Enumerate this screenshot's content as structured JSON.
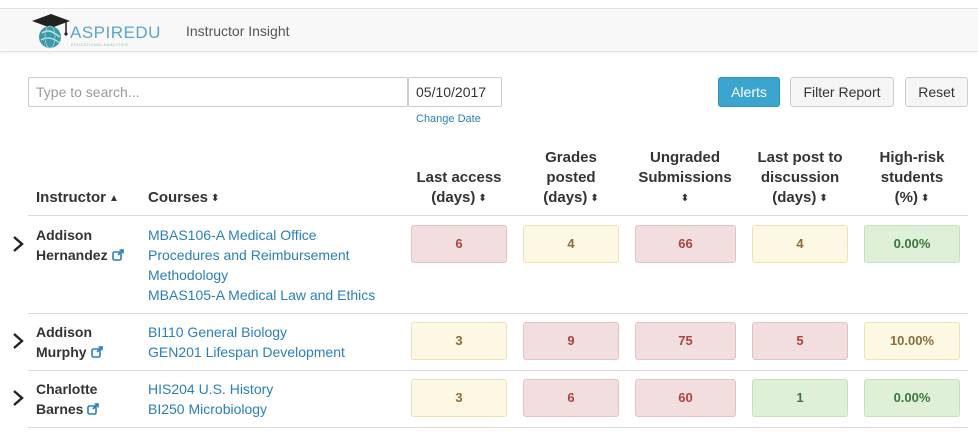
{
  "app": {
    "logo_text": "ASPIREDU",
    "logo_tagline": "EDUCATIONAL ANALYTICS",
    "title": "Instructor Insight"
  },
  "search": {
    "placeholder": "Type to search...",
    "value": ""
  },
  "date": {
    "value": "05/10/2017",
    "change_label": "Change Date"
  },
  "buttons": {
    "alerts": "Alerts",
    "filter": "Filter Report",
    "reset": "Reset"
  },
  "columns": {
    "instructor": "Instructor",
    "courses": "Courses",
    "last_access": [
      "Last access",
      "(days)"
    ],
    "grades_posted": [
      "Grades",
      "posted",
      "(days)"
    ],
    "ungraded": [
      "Ungraded",
      "Submissions"
    ],
    "last_post": [
      "Last post to",
      "discussion",
      "(days)"
    ],
    "high_risk": [
      "High-risk",
      "students",
      "(%)"
    ]
  },
  "colors": {
    "red": "#f2dede",
    "yellow": "#fcf8e3",
    "green": "#dff0d8",
    "link": "#2a7fb8",
    "accent": "#3ba4cf"
  },
  "rows": [
    {
      "name": [
        "Addison",
        "Hernandez"
      ],
      "courses": [
        "MBAS106-A Medical Office",
        "Procedures and Reimbursement",
        "Methodology",
        "MBAS105-A Medical Law and Ethics"
      ],
      "metrics": [
        {
          "value": "6",
          "status": "red"
        },
        {
          "value": "4",
          "status": "yellow"
        },
        {
          "value": "66",
          "status": "red"
        },
        {
          "value": "4",
          "status": "yellow"
        },
        {
          "value": "0.00%",
          "status": "green"
        }
      ]
    },
    {
      "name": [
        "Addison",
        "Murphy"
      ],
      "courses": [
        "BI110 General Biology",
        "GEN201 Lifespan Development"
      ],
      "metrics": [
        {
          "value": "3",
          "status": "yellow"
        },
        {
          "value": "9",
          "status": "red"
        },
        {
          "value": "75",
          "status": "red"
        },
        {
          "value": "5",
          "status": "red"
        },
        {
          "value": "10.00%",
          "status": "yellow"
        }
      ]
    },
    {
      "name": [
        "Charlotte",
        "Barnes"
      ],
      "courses": [
        "HIS204 U.S. History",
        "BI250 Microbiology"
      ],
      "metrics": [
        {
          "value": "3",
          "status": "yellow"
        },
        {
          "value": "6",
          "status": "red"
        },
        {
          "value": "60",
          "status": "red"
        },
        {
          "value": "1",
          "status": "green"
        },
        {
          "value": "0.00%",
          "status": "green"
        }
      ]
    }
  ]
}
